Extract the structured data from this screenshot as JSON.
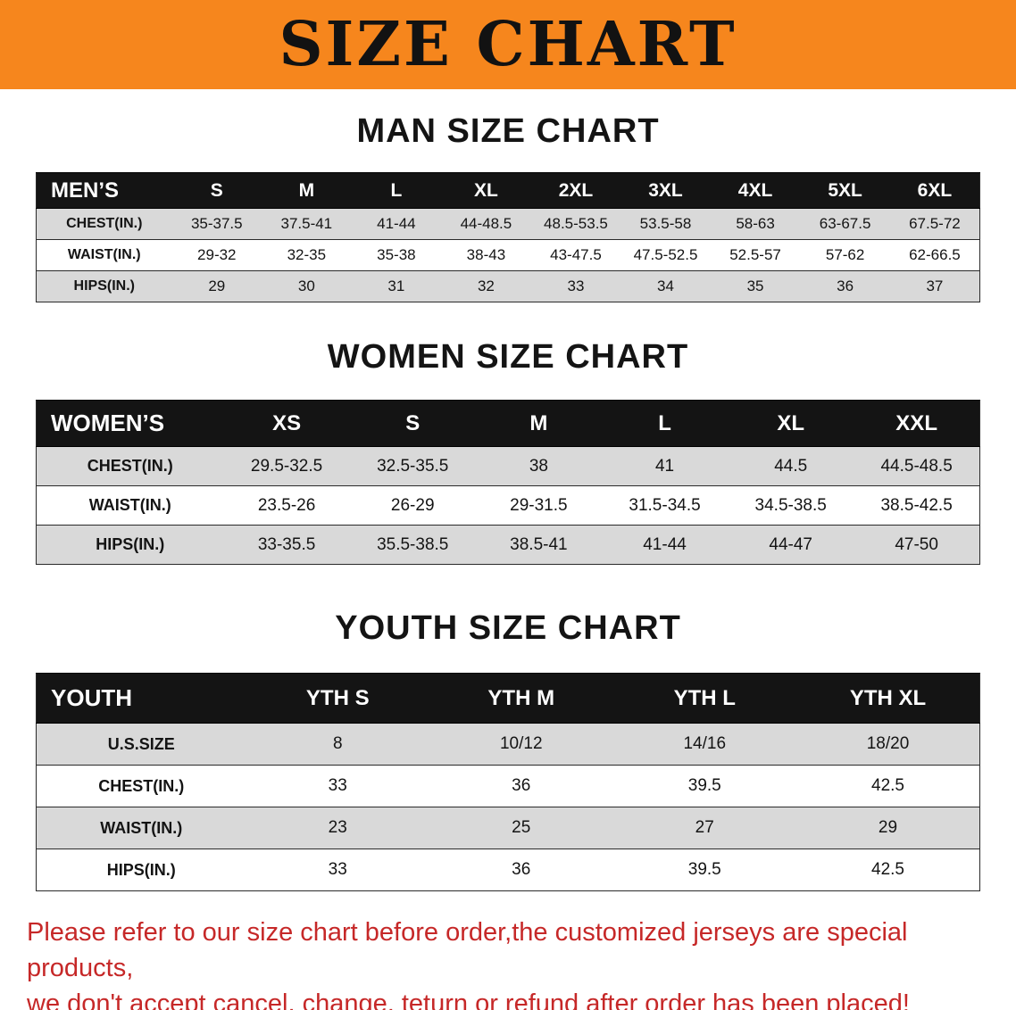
{
  "banner": {
    "title": "SIZE CHART"
  },
  "sections": [
    {
      "id": "men",
      "heading": "MAN SIZE CHART",
      "table": {
        "header": [
          "MEN’S",
          "S",
          "M",
          "L",
          "XL",
          "2XL",
          "3XL",
          "4XL",
          "5XL",
          "6XL"
        ],
        "rows": [
          [
            "CHEST(IN.)",
            "35-37.5",
            "37.5-41",
            "41-44",
            "44-48.5",
            "48.5-53.5",
            "53.5-58",
            "58-63",
            "63-67.5",
            "67.5-72"
          ],
          [
            "WAIST(IN.)",
            "29-32",
            "32-35",
            "35-38",
            "38-43",
            "43-47.5",
            "47.5-52.5",
            "52.5-57",
            "57-62",
            "62-66.5"
          ],
          [
            "HIPS(IN.)",
            "29",
            "30",
            "31",
            "32",
            "33",
            "34",
            "35",
            "36",
            "37"
          ]
        ]
      }
    },
    {
      "id": "women",
      "heading": "WOMEN SIZE CHART",
      "table": {
        "header": [
          "WOMEN’S",
          "XS",
          "S",
          "M",
          "L",
          "XL",
          "XXL"
        ],
        "rows": [
          [
            "CHEST(IN.)",
            "29.5-32.5",
            "32.5-35.5",
            "38",
            "41",
            "44.5",
            "44.5-48.5"
          ],
          [
            "WAIST(IN.)",
            "23.5-26",
            "26-29",
            "29-31.5",
            "31.5-34.5",
            "34.5-38.5",
            "38.5-42.5"
          ],
          [
            "HIPS(IN.)",
            "33-35.5",
            "35.5-38.5",
            "38.5-41",
            "41-44",
            "44-47",
            "47-50"
          ]
        ]
      }
    },
    {
      "id": "youth",
      "heading": "YOUTH SIZE CHART",
      "table": {
        "header": [
          "YOUTH",
          "YTH S",
          "YTH M",
          "YTH L",
          "YTH XL"
        ],
        "rows": [
          [
            "U.S.SIZE",
            "8",
            "10/12",
            "14/16",
            "18/20"
          ],
          [
            "CHEST(IN.)",
            "33",
            "36",
            "39.5",
            "42.5"
          ],
          [
            "WAIST(IN.)",
            "23",
            "25",
            "27",
            "29"
          ],
          [
            "HIPS(IN.)",
            "33",
            "36",
            "39.5",
            "42.5"
          ]
        ]
      }
    }
  ],
  "footer": {
    "line1": "Please refer to our size chart before order,the customized jerseys are special products,",
    "line2": "we don't accept cancel, change, teturn or refund after order has been placed!"
  },
  "colors": {
    "banner_bg": "#f6861d",
    "banner_text": "#121212",
    "header_row_bg": "#141414",
    "header_row_text": "#ffffff",
    "stripe_row_bg": "#d9d9d9",
    "footer_text": "#c62828"
  }
}
